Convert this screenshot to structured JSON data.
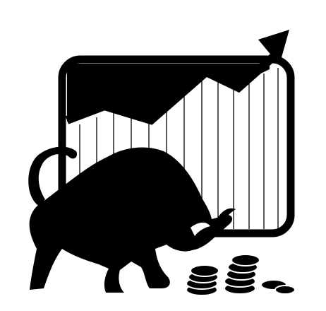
{
  "image": {
    "kind": "icon-illustration",
    "subject": "bull-market-growth-chart",
    "elements": [
      "bull-icon",
      "rising-chart-icon",
      "trend-arrow-icon",
      "coin-stack-icon"
    ]
  },
  "colors": {
    "ink": "#000000",
    "paper": "#ffffff"
  }
}
